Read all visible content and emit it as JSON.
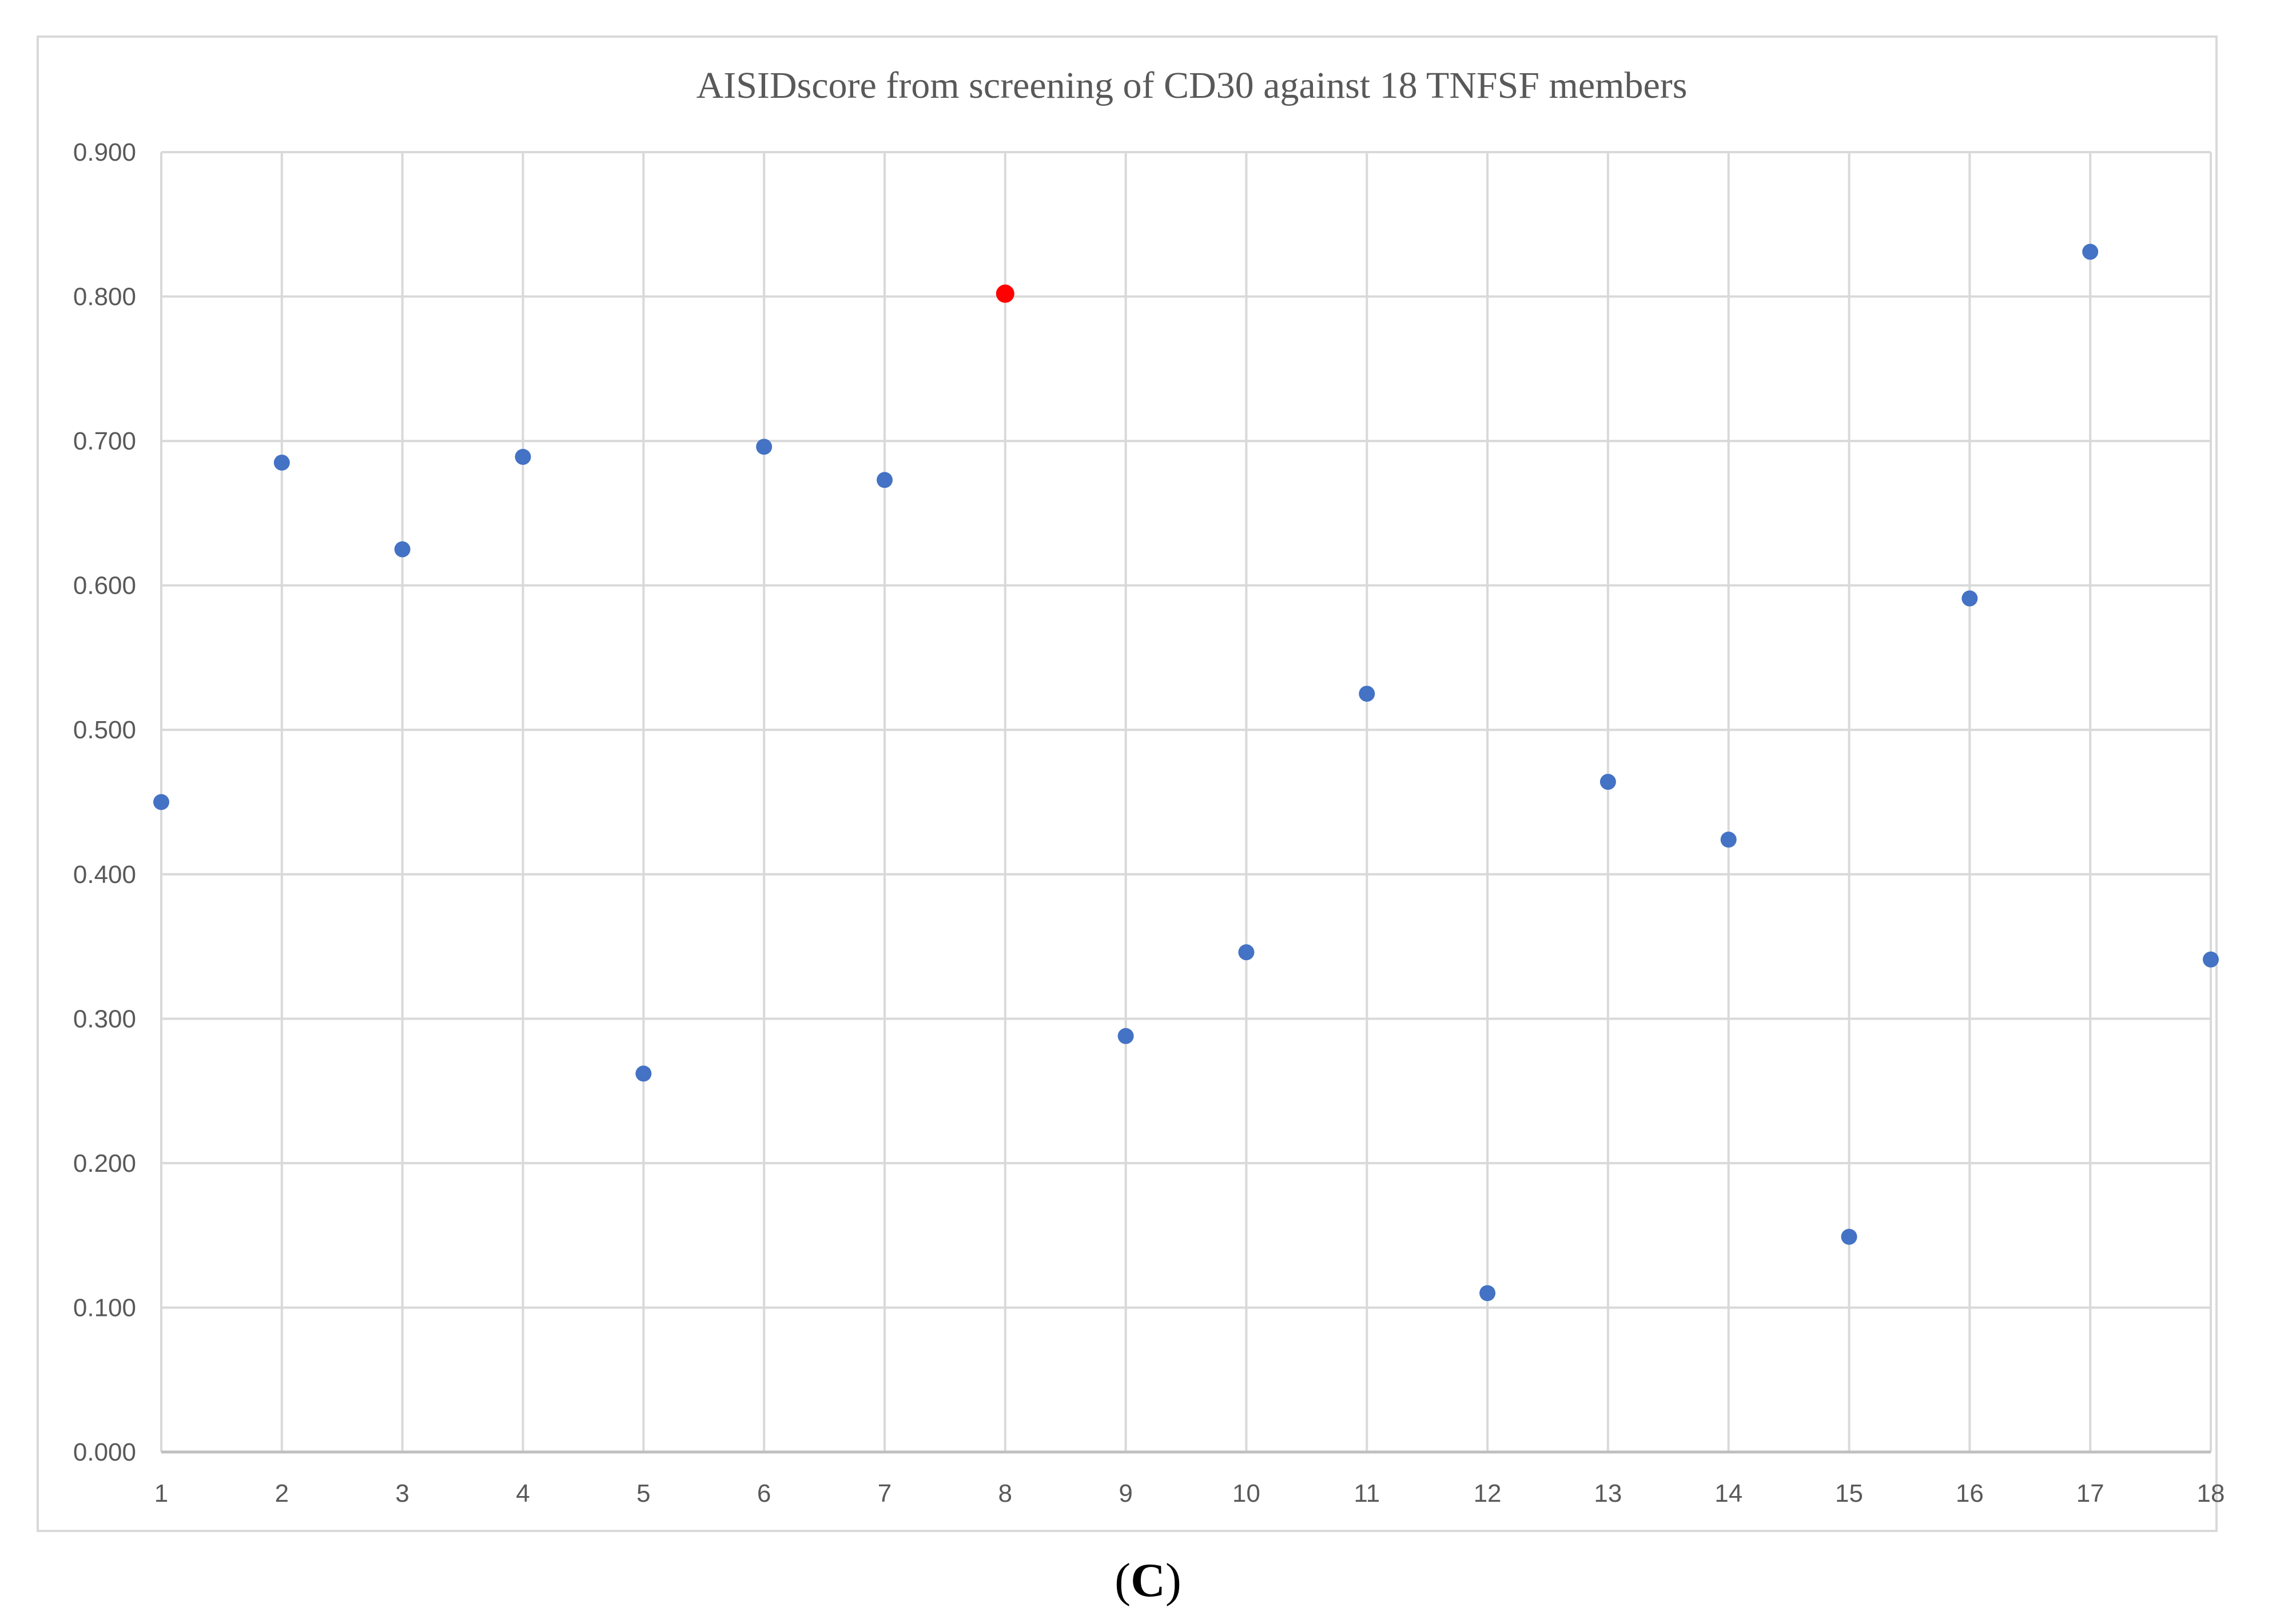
{
  "chart_data": {
    "type": "scatter",
    "title": "AISIDscore from screening of CD30 against 18 TNFSF members",
    "xlabel": "",
    "ylabel": "",
    "x": [
      1,
      2,
      3,
      4,
      5,
      6,
      7,
      8,
      9,
      10,
      11,
      12,
      13,
      14,
      15,
      16,
      17,
      18
    ],
    "y": [
      0.45,
      0.685,
      0.625,
      0.689,
      0.262,
      0.696,
      0.673,
      0.802,
      0.288,
      0.346,
      0.525,
      0.11,
      0.464,
      0.424,
      0.149,
      0.591,
      0.831,
      0.341
    ],
    "xlim": [
      1,
      18
    ],
    "ylim": [
      0,
      0.9
    ],
    "x_ticks": [
      "1",
      "2",
      "3",
      "4",
      "5",
      "6",
      "7",
      "8",
      "9",
      "10",
      "11",
      "12",
      "13",
      "14",
      "15",
      "16",
      "17",
      "18"
    ],
    "y_ticks": [
      "0.000",
      "0.100",
      "0.200",
      "0.300",
      "0.400",
      "0.500",
      "0.600",
      "0.700",
      "0.800",
      "0.900"
    ],
    "grid": true,
    "legend": "none",
    "point_color": "#4472c4",
    "highlight_color": "#ff0000",
    "highlight_x": 8
  },
  "caption": {
    "open": "(",
    "letter": "C",
    "close": ")"
  }
}
